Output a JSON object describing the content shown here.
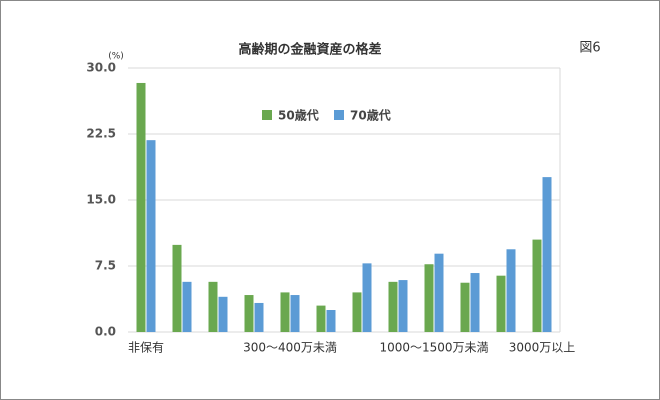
{
  "chart_data": {
    "type": "bar",
    "title": "高齢期の金融資産の格差",
    "figure_label": "図6",
    "unit_label": "(%)",
    "categories": [
      "非保有",
      null,
      null,
      null,
      "300～400万未満",
      null,
      null,
      null,
      "1000～1500万未満",
      null,
      null,
      "3000万以上"
    ],
    "series": [
      {
        "name": "50歳代",
        "color": "#6aa84f",
        "values": [
          28.3,
          9.9,
          5.7,
          4.2,
          4.5,
          3.0,
          4.5,
          5.7,
          7.7,
          5.6,
          6.4,
          10.5
        ]
      },
      {
        "name": "70歳代",
        "color": "#5b9bd5",
        "values": [
          21.8,
          5.7,
          4.0,
          3.3,
          4.2,
          2.5,
          7.8,
          5.9,
          8.9,
          6.7,
          9.4,
          17.6
        ]
      }
    ],
    "ylim": [
      0,
      30
    ],
    "yticks": [
      {
        "value": 0,
        "label": "0.0"
      },
      7.5,
      {
        "value": 15,
        "label": "15.0"
      },
      22.5,
      {
        "value": 30,
        "label": "30.0"
      }
    ],
    "grid": true,
    "legend": "top"
  }
}
